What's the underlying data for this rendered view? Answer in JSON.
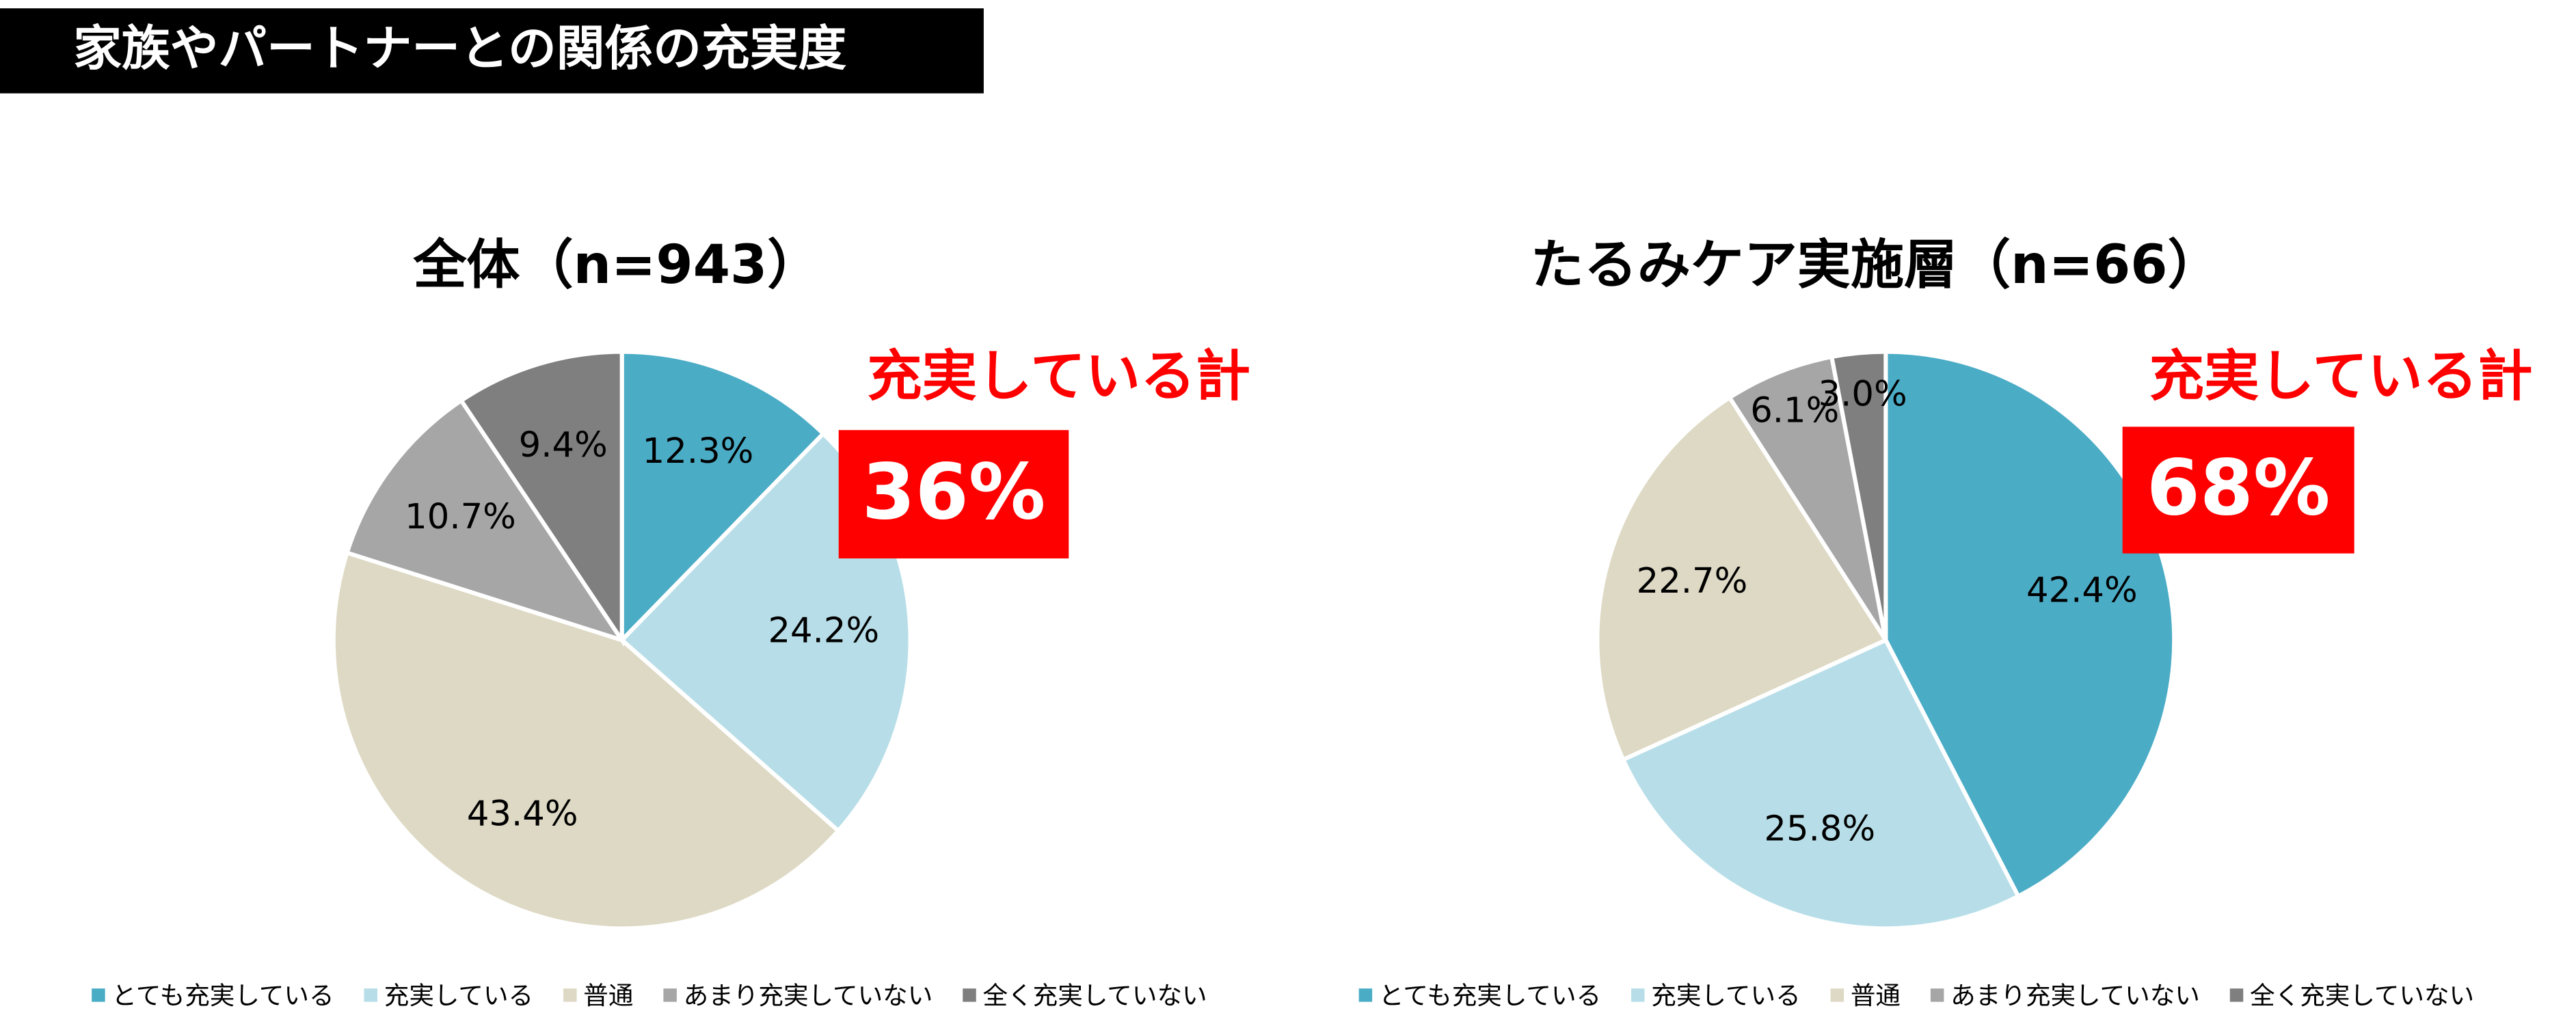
{
  "title": "家族やパートナーとの関係の充実度",
  "chart_data": [
    {
      "type": "pie",
      "title": "全体（n=943）",
      "categories": [
        "とても充実している",
        "充実している",
        "普通",
        "あまり充実していない",
        "全く充実していない"
      ],
      "values": [
        12.3,
        24.2,
        43.4,
        10.7,
        9.4
      ],
      "value_labels": [
        "12.3%",
        "24.2%",
        "43.4%",
        "10.7%",
        "9.4%"
      ],
      "colors": [
        "#4bacc6",
        "#b7dee8",
        "#ddd9c4",
        "#a6a6a6",
        "#7f7f7f"
      ],
      "annotation": "充実している計",
      "annotation_value": "36%",
      "legend": "bottom"
    },
    {
      "type": "pie",
      "title": "たるみケア実施層（n=66）",
      "categories": [
        "とても充実している",
        "充実している",
        "普通",
        "あまり充実していない",
        "全く充実していない"
      ],
      "values": [
        42.4,
        25.8,
        22.7,
        6.1,
        3.0
      ],
      "value_labels": [
        "42.4%",
        "25.8%",
        "22.7%",
        "6.1%",
        "3.0%"
      ],
      "colors": [
        "#4bacc6",
        "#b7dee8",
        "#ddd9c4",
        "#a6a6a6",
        "#7f7f7f"
      ],
      "annotation": "充実している計",
      "annotation_value": "68%",
      "legend": "bottom"
    }
  ]
}
